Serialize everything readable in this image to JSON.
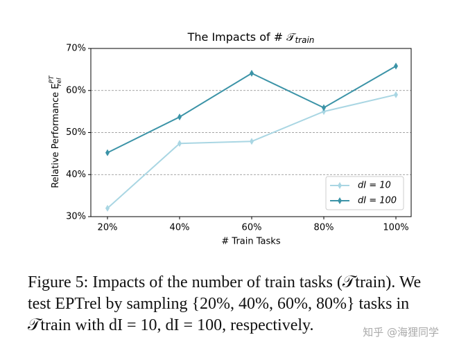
{
  "chart_data": {
    "type": "line",
    "title": "The Impacts of # 𝒯",
    "title_subscript": "train",
    "y_label": "Relative Performance E",
    "y_label_superscript": "PT",
    "y_label_subscript": "rel",
    "x_label": "# Train Tasks",
    "categories": [
      "20%",
      "40%",
      "60%",
      "80%",
      "100%"
    ],
    "series": [
      {
        "name": "dI = 10",
        "color": "#a9d6e3",
        "values": [
          32,
          47.4,
          47.9,
          55,
          59
        ]
      },
      {
        "name": "dI = 100",
        "color": "#3b93a7",
        "values": [
          45.2,
          53.7,
          64.1,
          55.9,
          65.8
        ]
      }
    ],
    "ylim": [
      30,
      70
    ],
    "yticks": [
      {
        "value": 30,
        "label": "30%"
      },
      {
        "value": 40,
        "label": "40%"
      },
      {
        "value": 50,
        "label": "50%"
      },
      {
        "value": 60,
        "label": "60%"
      },
      {
        "value": 70,
        "label": "70%"
      }
    ],
    "grid": true,
    "legend": "lower right"
  },
  "caption": "Figure 5: Impacts of the number of train tasks (𝒯train). We test EPTrel by sampling {20%, 40%, 60%, 80%} tasks in 𝒯train with dI = 10, dI = 100, respectively.",
  "watermark": "知乎 @海狸同学"
}
